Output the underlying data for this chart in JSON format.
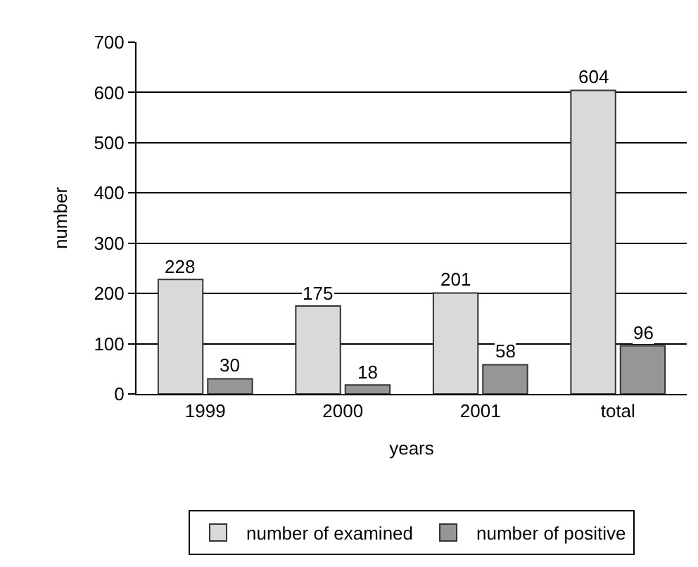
{
  "chart_data": {
    "type": "bar",
    "xlabel": "years",
    "ylabel": "number",
    "categories": [
      "1999",
      "2000",
      "2001",
      "total"
    ],
    "series": [
      {
        "name": "number of examined",
        "color": "#d9d9d9",
        "values": [
          228,
          175,
          201,
          604
        ]
      },
      {
        "name": "number of positive",
        "color": "#969696",
        "values": [
          30,
          18,
          58,
          96
        ]
      }
    ],
    "ylim": [
      0,
      700
    ],
    "yticks": [
      0,
      100,
      200,
      300,
      400,
      500,
      600,
      700
    ],
    "grid": "y",
    "legend": "bottom",
    "data_labels": true
  }
}
